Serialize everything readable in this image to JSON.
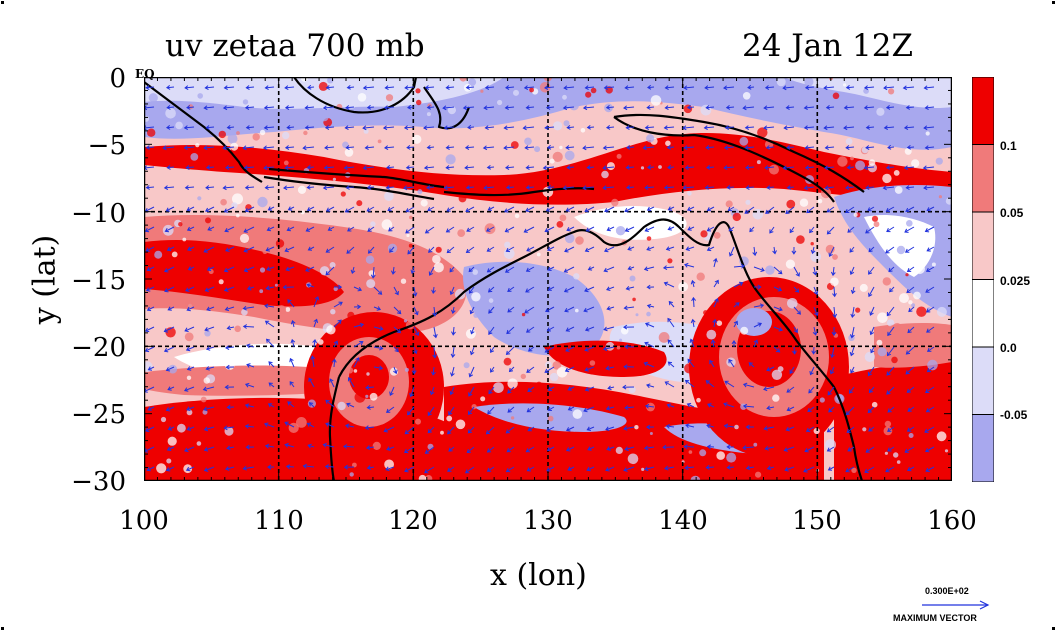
{
  "title": {
    "left": "uv zetaa 700 mb",
    "right": "24 Jan 12Z"
  },
  "axes": {
    "xlabel": "x (lon)",
    "ylabel": "y (lat)",
    "x_ticks": [
      "100",
      "110",
      "120",
      "130",
      "140",
      "150",
      "160"
    ],
    "y_ticks": [
      "0",
      "−5",
      "−10",
      "−15",
      "−20",
      "−25",
      "−30"
    ],
    "eq_label": "EQ"
  },
  "colorbar": {
    "labels": [
      "0.1",
      "0.05",
      "0.025",
      "0.0",
      "-0.05"
    ],
    "colors": [
      "#ee0000",
      "#f07a7a",
      "#f8c8c8",
      "#ffffff",
      "#dcdcf8",
      "#a8a8ee"
    ]
  },
  "vector_key": {
    "value": "0.300E+02",
    "label": "MAXIMUM VECTOR"
  },
  "chart_data": {
    "type": "heatmap",
    "title": "uv zetaa 700 mb",
    "subtitle": "24 Jan 12Z",
    "xlabel": "x (lon)",
    "ylabel": "y (lat)",
    "xlim": [
      100,
      160
    ],
    "ylim": [
      -30,
      0
    ],
    "grid": true,
    "contour_levels": [
      -0.05,
      0.0,
      0.025,
      0.05,
      0.1
    ],
    "colors": {
      "strong_positive": "#ee0000",
      "medium_positive": "#f07a7a",
      "light_positive": "#f8c8c8",
      "neutral": "#ffffff",
      "light_negative": "#dcdcf8",
      "negative": "#a8a8ee",
      "vectors": "#2233dd",
      "coastline": "#000000"
    },
    "vector_max": "0.300E+02"
  }
}
